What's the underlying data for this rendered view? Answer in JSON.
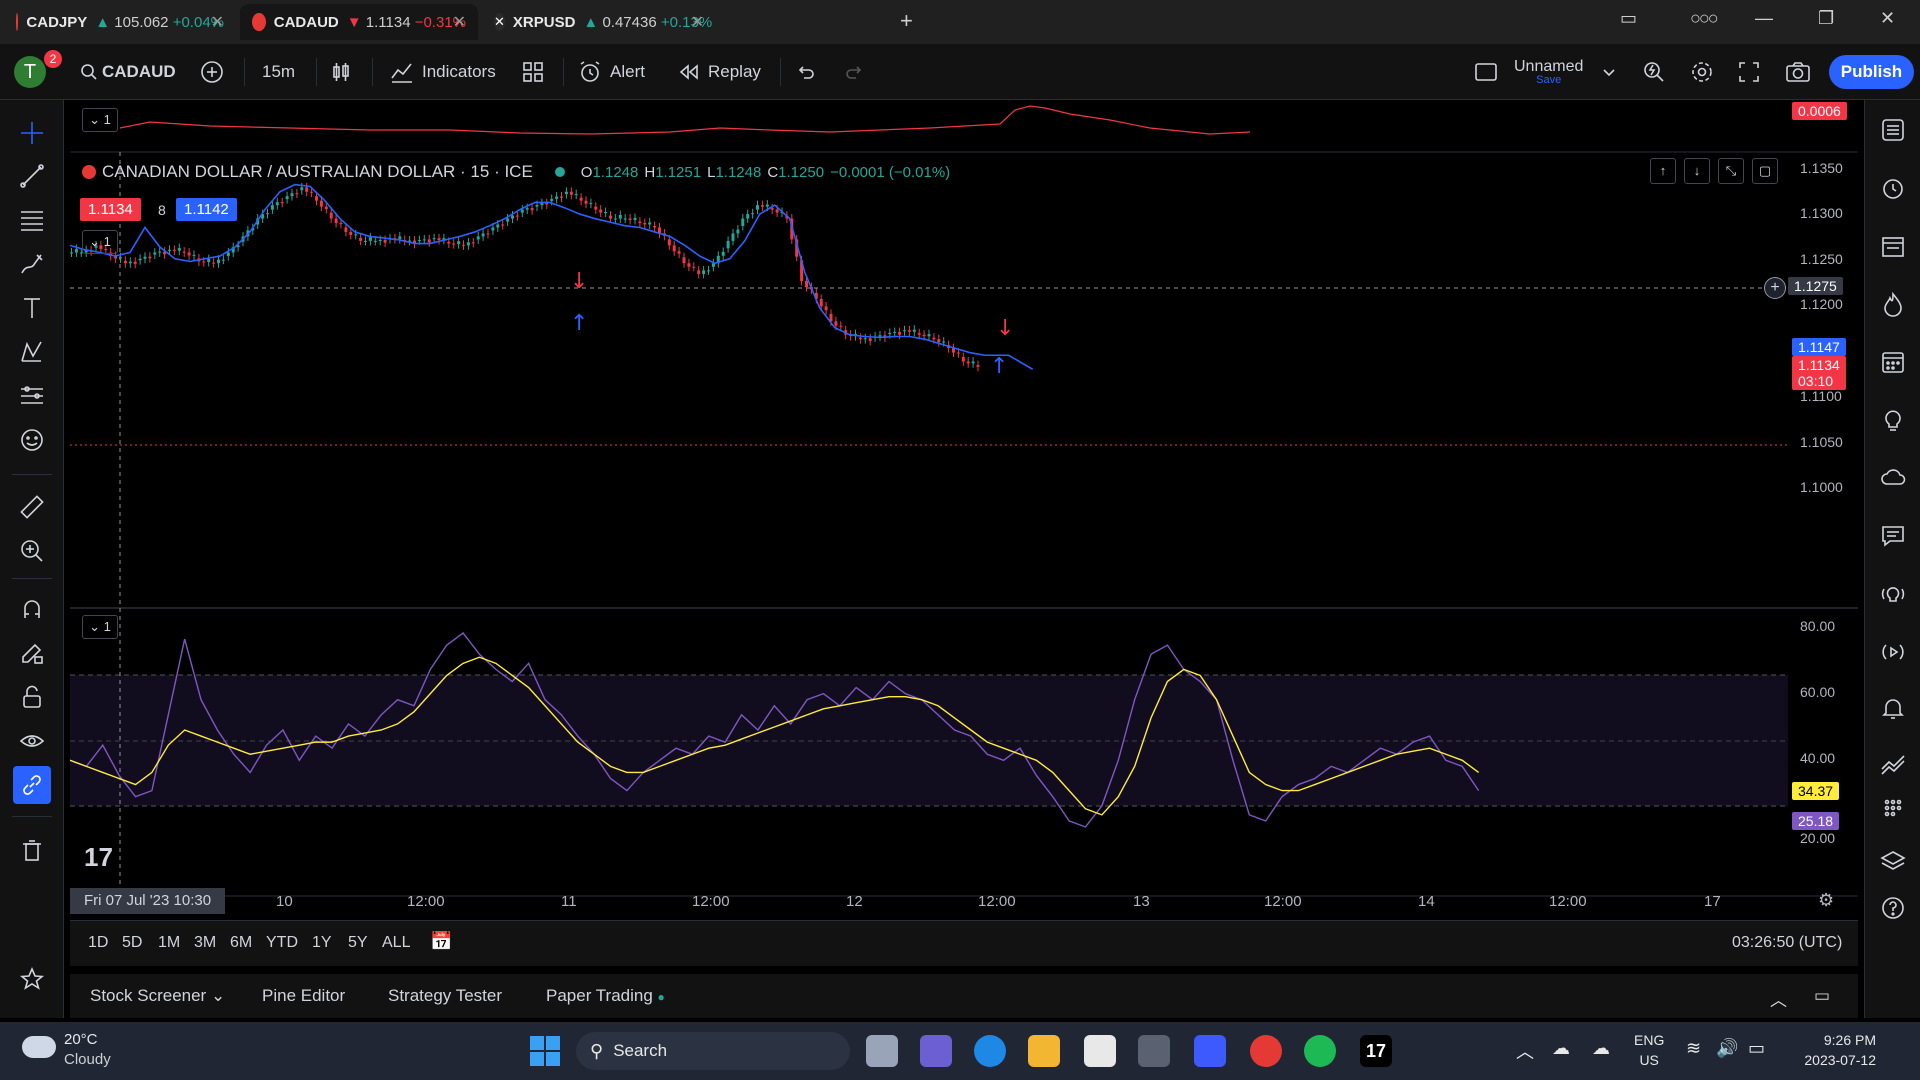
{
  "browser_tabs": [
    {
      "symbol": "CADJPY",
      "arrow": "▲",
      "price": "105.062",
      "change": "+0.04%",
      "direction": "up"
    },
    {
      "symbol": "CADAUD",
      "arrow": "▼",
      "price": "1.1134",
      "change": "−0.31%",
      "direction": "down"
    },
    {
      "symbol": "XRPUSD",
      "arrow": "▲",
      "price": "0.47436",
      "change": "+0.13%",
      "direction": "up"
    }
  ],
  "toolbar": {
    "avatar_letter": "T",
    "notification_count": "2",
    "symbol": "CADAUD",
    "interval": "15m",
    "indicators": "Indicators",
    "alert": "Alert",
    "replay": "Replay",
    "layout_name": "Unnamed",
    "layout_save": "Save",
    "publish": "Publish"
  },
  "chart": {
    "title": "CANADIAN DOLLAR / AUSTRALIAN DOLLAR · 15 · ICE",
    "ohlc": {
      "o": "1.1248",
      "h": "1.1251",
      "l": "1.1248",
      "c": "1.1250",
      "change": "−0.0001 (−0.01%)"
    },
    "bid": "1.1134",
    "spread": "8",
    "ask": "1.1142",
    "indicator_collapse": "1",
    "top_indicator_value": "0.0006",
    "price_axis": [
      "1.1350",
      "1.1300",
      "1.1250",
      "1.1200",
      "1.1100",
      "1.1050",
      "1.1000"
    ],
    "crosshair_price": "1.1275",
    "ma_price": "1.1147",
    "last_price": "1.1134",
    "countdown": "03:10",
    "osc_axis": [
      "80.00",
      "60.00",
      "40.00",
      "20.00"
    ],
    "osc_signal": "34.37",
    "osc_value": "25.18",
    "time_axis": [
      "10",
      "12:00",
      "11",
      "12:00",
      "12",
      "12:00",
      "13",
      "12:00",
      "14",
      "12:00",
      "17"
    ],
    "crosshair_time": "Fri 07 Jul '23   10:30"
  },
  "chart_data": {
    "type": "line",
    "title": "CANADIAN DOLLAR / AUSTRALIAN DOLLAR · 15 · ICE",
    "series": [
      {
        "name": "Price",
        "values": [
          1.1262,
          1.127,
          1.1258,
          1.125,
          1.1255,
          1.1262,
          1.1265,
          1.1262,
          1.1252,
          1.125,
          1.1262,
          1.128,
          1.13,
          1.1315,
          1.1325,
          1.1335,
          1.132,
          1.13,
          1.1285,
          1.1275,
          1.1275,
          1.1278,
          1.1275,
          1.1276,
          1.1278,
          1.1272,
          1.127,
          1.128,
          1.129,
          1.13,
          1.131,
          1.1315,
          1.1322,
          1.133,
          1.132,
          1.131,
          1.13,
          1.13,
          1.1295,
          1.129,
          1.127,
          1.125,
          1.1238,
          1.125,
          1.1275,
          1.13,
          1.1315,
          1.131,
          1.13,
          1.123,
          1.121,
          1.1185,
          1.117,
          1.1165,
          1.1168,
          1.1172,
          1.1175,
          1.117,
          1.1165,
          1.1155,
          1.114,
          1.1134
        ]
      },
      {
        "name": "MA",
        "values": [
          1.127,
          1.1265,
          1.1262,
          1.1258,
          1.1262,
          1.129,
          1.1268,
          1.1255,
          1.1252,
          1.1255,
          1.1258,
          1.1268,
          1.1285,
          1.131,
          1.133,
          1.1338,
          1.1336,
          1.132,
          1.13,
          1.1285,
          1.128,
          1.1278,
          1.1276,
          1.1272,
          1.1272,
          1.1276,
          1.128,
          1.1285,
          1.1292,
          1.13,
          1.131,
          1.1318,
          1.1318,
          1.1312,
          1.1305,
          1.13,
          1.1296,
          1.1292,
          1.129,
          1.1285,
          1.128,
          1.127,
          1.1258,
          1.125,
          1.1255,
          1.1275,
          1.1305,
          1.1315,
          1.13,
          1.124,
          1.12,
          1.1178,
          1.117,
          1.1168,
          1.1167,
          1.1168,
          1.1168,
          1.1165,
          1.116,
          1.1155,
          1.115,
          1.1147
        ]
      }
    ],
    "ylim": [
      1.0985,
      1.137
    ]
  }
}
